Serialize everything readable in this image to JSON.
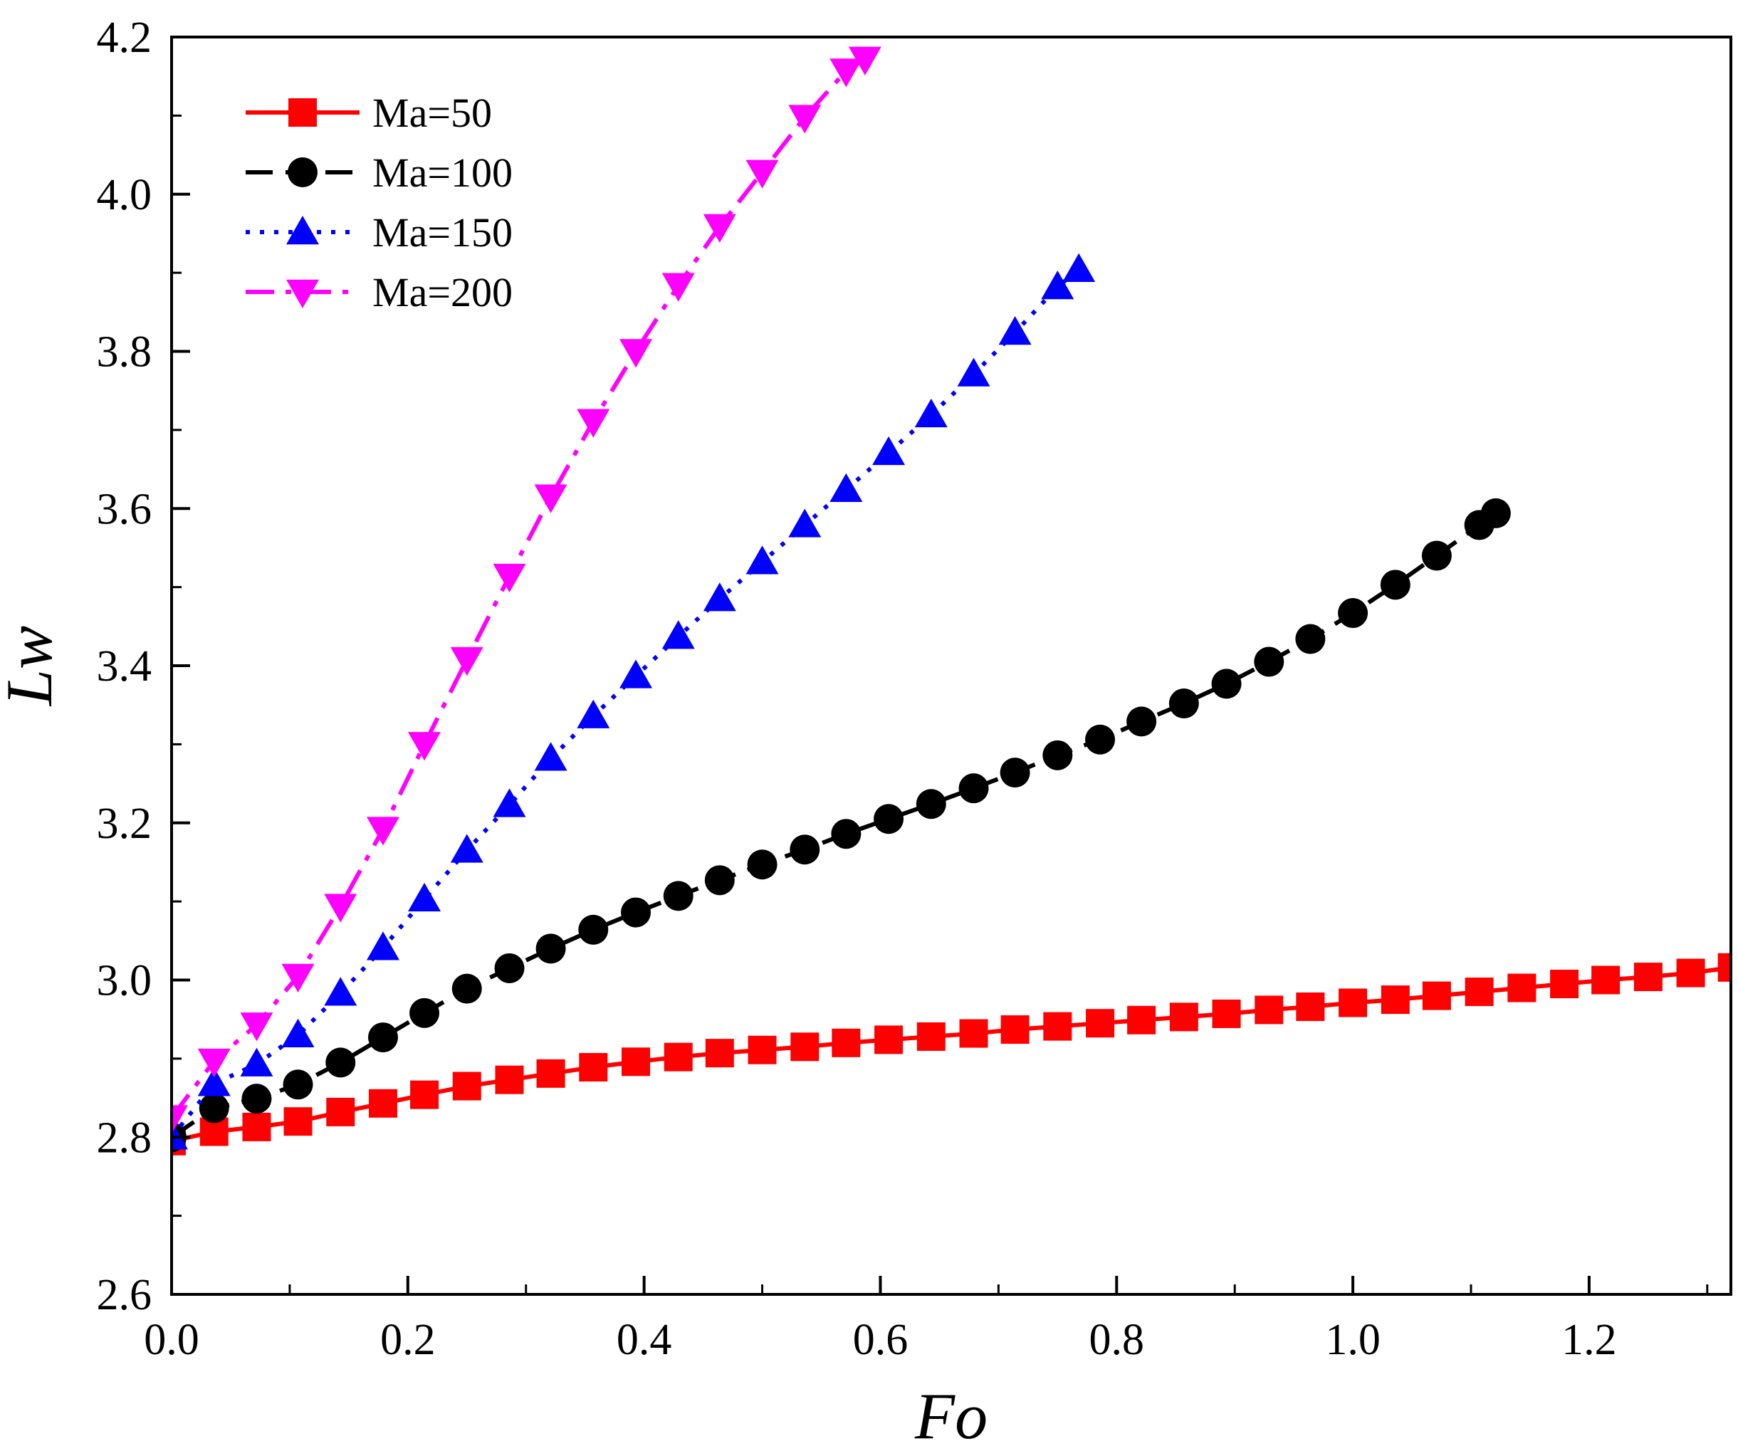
{
  "chart_data": {
    "type": "line",
    "title": "",
    "xlabel": "Fo",
    "ylabel": "Lw",
    "xlim": [
      0.0,
      1.32
    ],
    "ylim": [
      2.6,
      4.2
    ],
    "xticks": [
      0.0,
      0.2,
      0.4,
      0.6,
      0.8,
      1.0,
      1.2
    ],
    "xtick_labels": [
      "0.0",
      "0.2",
      "0.4",
      "0.6",
      "0.8",
      "1.0",
      "1.2"
    ],
    "x_minor_step": 0.1,
    "yticks": [
      2.6,
      2.8,
      3.0,
      3.2,
      3.4,
      3.6,
      3.8,
      4.0,
      4.2
    ],
    "ytick_labels": [
      "2.6",
      "2.8",
      "3.0",
      "3.2",
      "3.4",
      "3.6",
      "3.8",
      "4.0",
      "4.2"
    ],
    "y_minor_step": 0.1,
    "grid": false,
    "legend_position": "top-left",
    "series": [
      {
        "name": "Ma=50",
        "color": "#ff0000",
        "marker": "square",
        "line_style": "solid",
        "x": [
          0.0,
          0.036,
          0.072,
          0.107,
          0.143,
          0.179,
          0.214,
          0.25,
          0.286,
          0.321,
          0.357,
          0.393,
          0.429,
          0.464,
          0.5,
          0.536,
          0.571,
          0.607,
          0.643,
          0.679,
          0.714,
          0.75,
          0.786,
          0.821,
          0.857,
          0.893,
          0.929,
          0.964,
          1.0,
          1.036,
          1.071,
          1.107,
          1.143,
          1.179,
          1.214,
          1.25,
          1.286,
          1.321
        ],
        "y": [
          2.795,
          2.807,
          2.813,
          2.82,
          2.832,
          2.843,
          2.854,
          2.865,
          2.873,
          2.881,
          2.889,
          2.896,
          2.902,
          2.907,
          2.911,
          2.915,
          2.92,
          2.924,
          2.928,
          2.932,
          2.937,
          2.941,
          2.945,
          2.949,
          2.953,
          2.957,
          2.962,
          2.966,
          2.971,
          2.975,
          2.98,
          2.985,
          2.99,
          2.995,
          3.0,
          3.004,
          3.009,
          3.016
        ]
      },
      {
        "name": "Ma=100",
        "color": "#000000",
        "marker": "circle",
        "line_style": "dashed",
        "x": [
          0.0,
          0.036,
          0.072,
          0.107,
          0.143,
          0.179,
          0.214,
          0.25,
          0.286,
          0.321,
          0.357,
          0.393,
          0.429,
          0.464,
          0.5,
          0.536,
          0.571,
          0.607,
          0.643,
          0.679,
          0.714,
          0.75,
          0.786,
          0.821,
          0.857,
          0.893,
          0.929,
          0.964,
          1.0,
          1.036,
          1.071,
          1.107,
          1.121
        ],
        "y": [
          2.8,
          2.837,
          2.849,
          2.867,
          2.895,
          2.927,
          2.958,
          2.989,
          3.015,
          3.04,
          3.064,
          3.086,
          3.107,
          3.127,
          3.147,
          3.166,
          3.186,
          3.205,
          3.224,
          3.244,
          3.264,
          3.286,
          3.306,
          3.329,
          3.352,
          3.377,
          3.405,
          3.434,
          3.467,
          3.503,
          3.54,
          3.579,
          3.594
        ]
      },
      {
        "name": "Ma=150",
        "color": "#0000ff",
        "marker": "triangle-up",
        "line_style": "dotted",
        "x": [
          0.0,
          0.036,
          0.072,
          0.107,
          0.143,
          0.179,
          0.214,
          0.25,
          0.286,
          0.321,
          0.357,
          0.393,
          0.429,
          0.464,
          0.5,
          0.536,
          0.571,
          0.607,
          0.643,
          0.679,
          0.714,
          0.75,
          0.768
        ],
        "y": [
          2.8,
          2.868,
          2.893,
          2.93,
          2.983,
          3.041,
          3.103,
          3.165,
          3.223,
          3.282,
          3.336,
          3.387,
          3.437,
          3.485,
          3.532,
          3.579,
          3.624,
          3.671,
          3.719,
          3.771,
          3.824,
          3.882,
          3.904
        ]
      },
      {
        "name": "Ma=200",
        "color": "#ff00ff",
        "marker": "triangle-down",
        "line_style": "dash-dot",
        "x": [
          0.0,
          0.036,
          0.072,
          0.107,
          0.143,
          0.179,
          0.214,
          0.25,
          0.286,
          0.321,
          0.357,
          0.393,
          0.429,
          0.464,
          0.5,
          0.536,
          0.571,
          0.587
        ],
        "y": [
          2.825,
          2.897,
          2.943,
          3.005,
          3.094,
          3.192,
          3.3,
          3.408,
          3.514,
          3.615,
          3.711,
          3.8,
          3.884,
          3.959,
          4.028,
          4.098,
          4.157,
          4.172
        ]
      }
    ]
  }
}
